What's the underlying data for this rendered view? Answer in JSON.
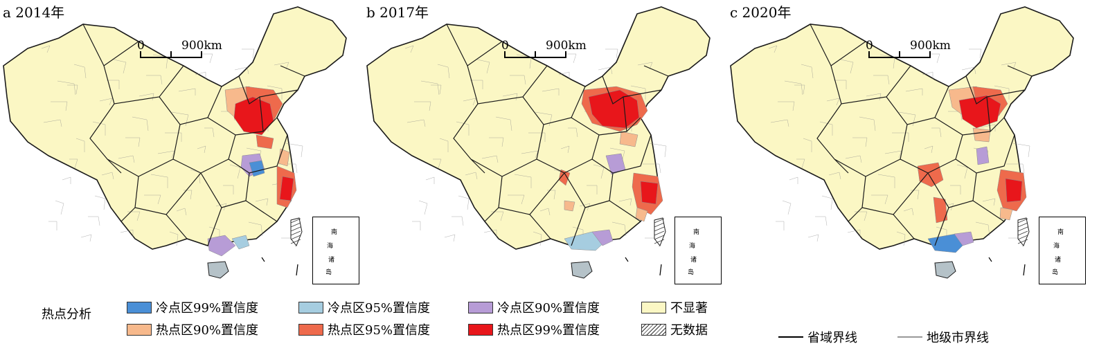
{
  "panels": [
    {
      "id": "a",
      "title": "a 2014年"
    },
    {
      "id": "b",
      "title": "b 2017年"
    },
    {
      "id": "c",
      "title": "c 2020年"
    }
  ],
  "scale": {
    "zero": "0",
    "length": "900km"
  },
  "inset": {
    "chars": [
      "南",
      "海",
      "诸",
      "岛"
    ]
  },
  "legend": {
    "title": "热点分析",
    "items": [
      {
        "label": "冷点区99%置信度",
        "color": "#4a8fd6"
      },
      {
        "label": "冷点区95%置信度",
        "color": "#a6cde0"
      },
      {
        "label": "冷点区90%置信度",
        "color": "#b79cd6"
      },
      {
        "label": "不显著",
        "color": "#fbf7c4"
      },
      {
        "label": "热点区90%置信度",
        "color": "#f7b98c"
      },
      {
        "label": "热点区95%置信度",
        "color": "#ee6a4c"
      },
      {
        "label": "热点区99%置信度",
        "color": "#e8161b"
      },
      {
        "label": "无数据",
        "color": "#ffffff"
      }
    ],
    "lines": [
      {
        "label": "省域界线",
        "color": "#000000"
      },
      {
        "label": "地级市界线",
        "color": "#999999"
      }
    ]
  },
  "colors": {
    "land": "#fbf7c4",
    "province_border": "#1a1a1a",
    "city_border": "#8a8a8a",
    "hot99": "#e8161b",
    "hot95": "#ee6a4c",
    "hot90": "#f7b98c",
    "cold99": "#4a8fd6",
    "cold95": "#a6cde0",
    "cold90": "#b79cd6"
  }
}
